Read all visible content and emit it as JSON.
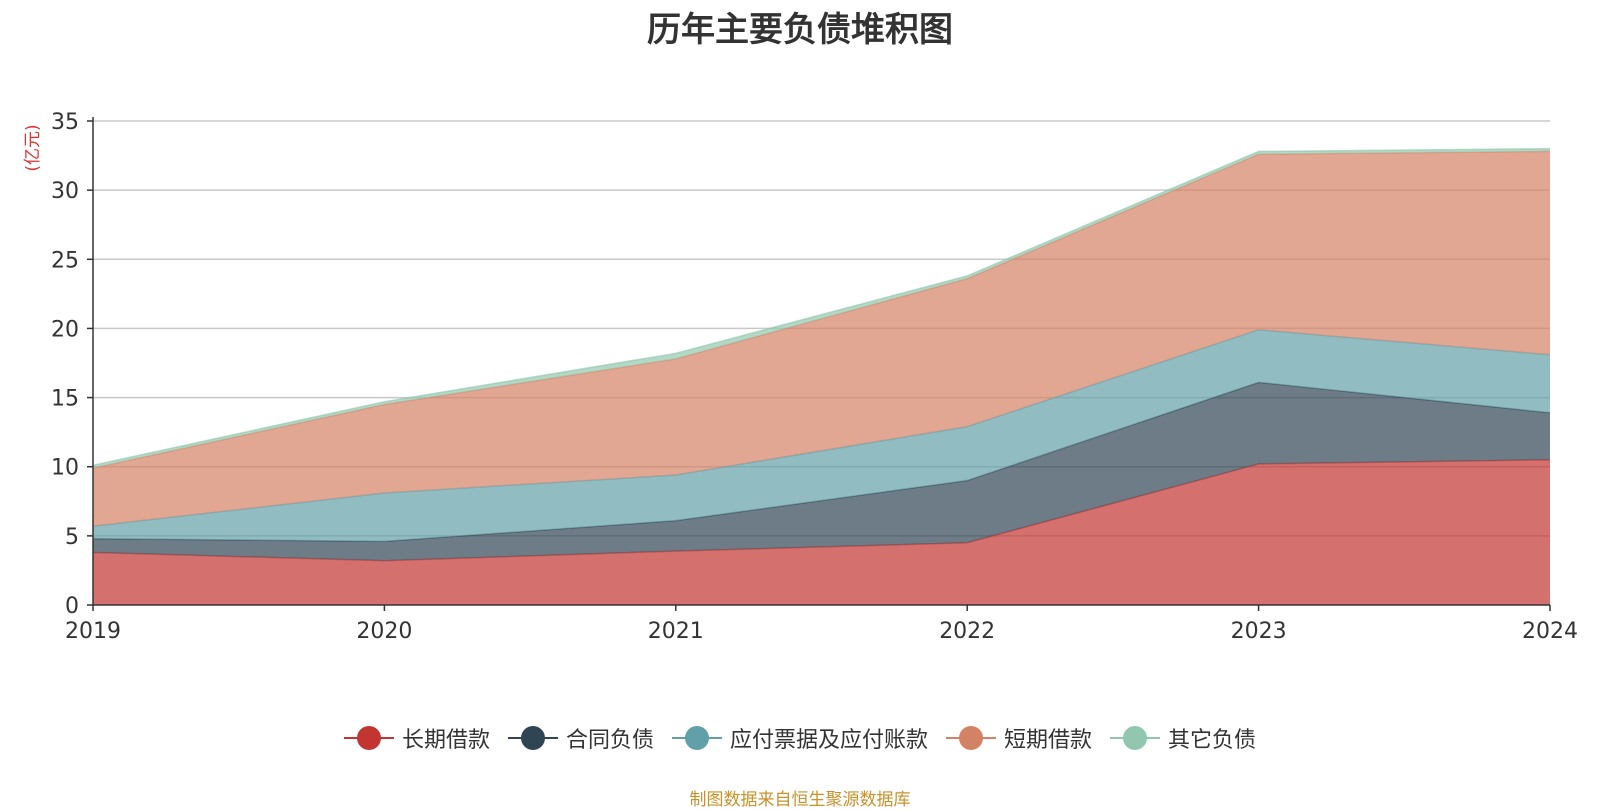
{
  "chart_data": {
    "type": "area",
    "stacked": true,
    "title": "历年主要负债堆积图",
    "ylabel": "(亿元)",
    "x": [
      "2019",
      "2020",
      "2021",
      "2022",
      "2023",
      "2024"
    ],
    "ylim": [
      0,
      35
    ],
    "yticks": [
      "0",
      "5",
      "10",
      "15",
      "20",
      "25",
      "30",
      "35"
    ],
    "grid": true,
    "legend_position": "bottom",
    "series": [
      {
        "name": "长期借款",
        "color": "#c23531",
        "values": [
          3.8,
          3.2,
          3.9,
          4.5,
          10.2,
          10.5
        ]
      },
      {
        "name": "合同负债",
        "color": "#2f4554",
        "values": [
          1.0,
          1.4,
          2.2,
          4.5,
          5.9,
          3.4
        ]
      },
      {
        "name": "应付票据及应付账款",
        "color": "#61a0a8",
        "values": [
          0.9,
          3.5,
          3.3,
          3.9,
          3.8,
          4.2
        ]
      },
      {
        "name": "短期借款",
        "color": "#d48265",
        "values": [
          4.2,
          6.4,
          8.4,
          10.7,
          12.7,
          14.7
        ]
      },
      {
        "name": "其它负债",
        "color": "#91c7ae",
        "values": [
          0.2,
          0.2,
          0.4,
          0.2,
          0.2,
          0.2
        ]
      }
    ]
  },
  "footer": {
    "source": "制图数据来自恒生聚源数据库"
  }
}
